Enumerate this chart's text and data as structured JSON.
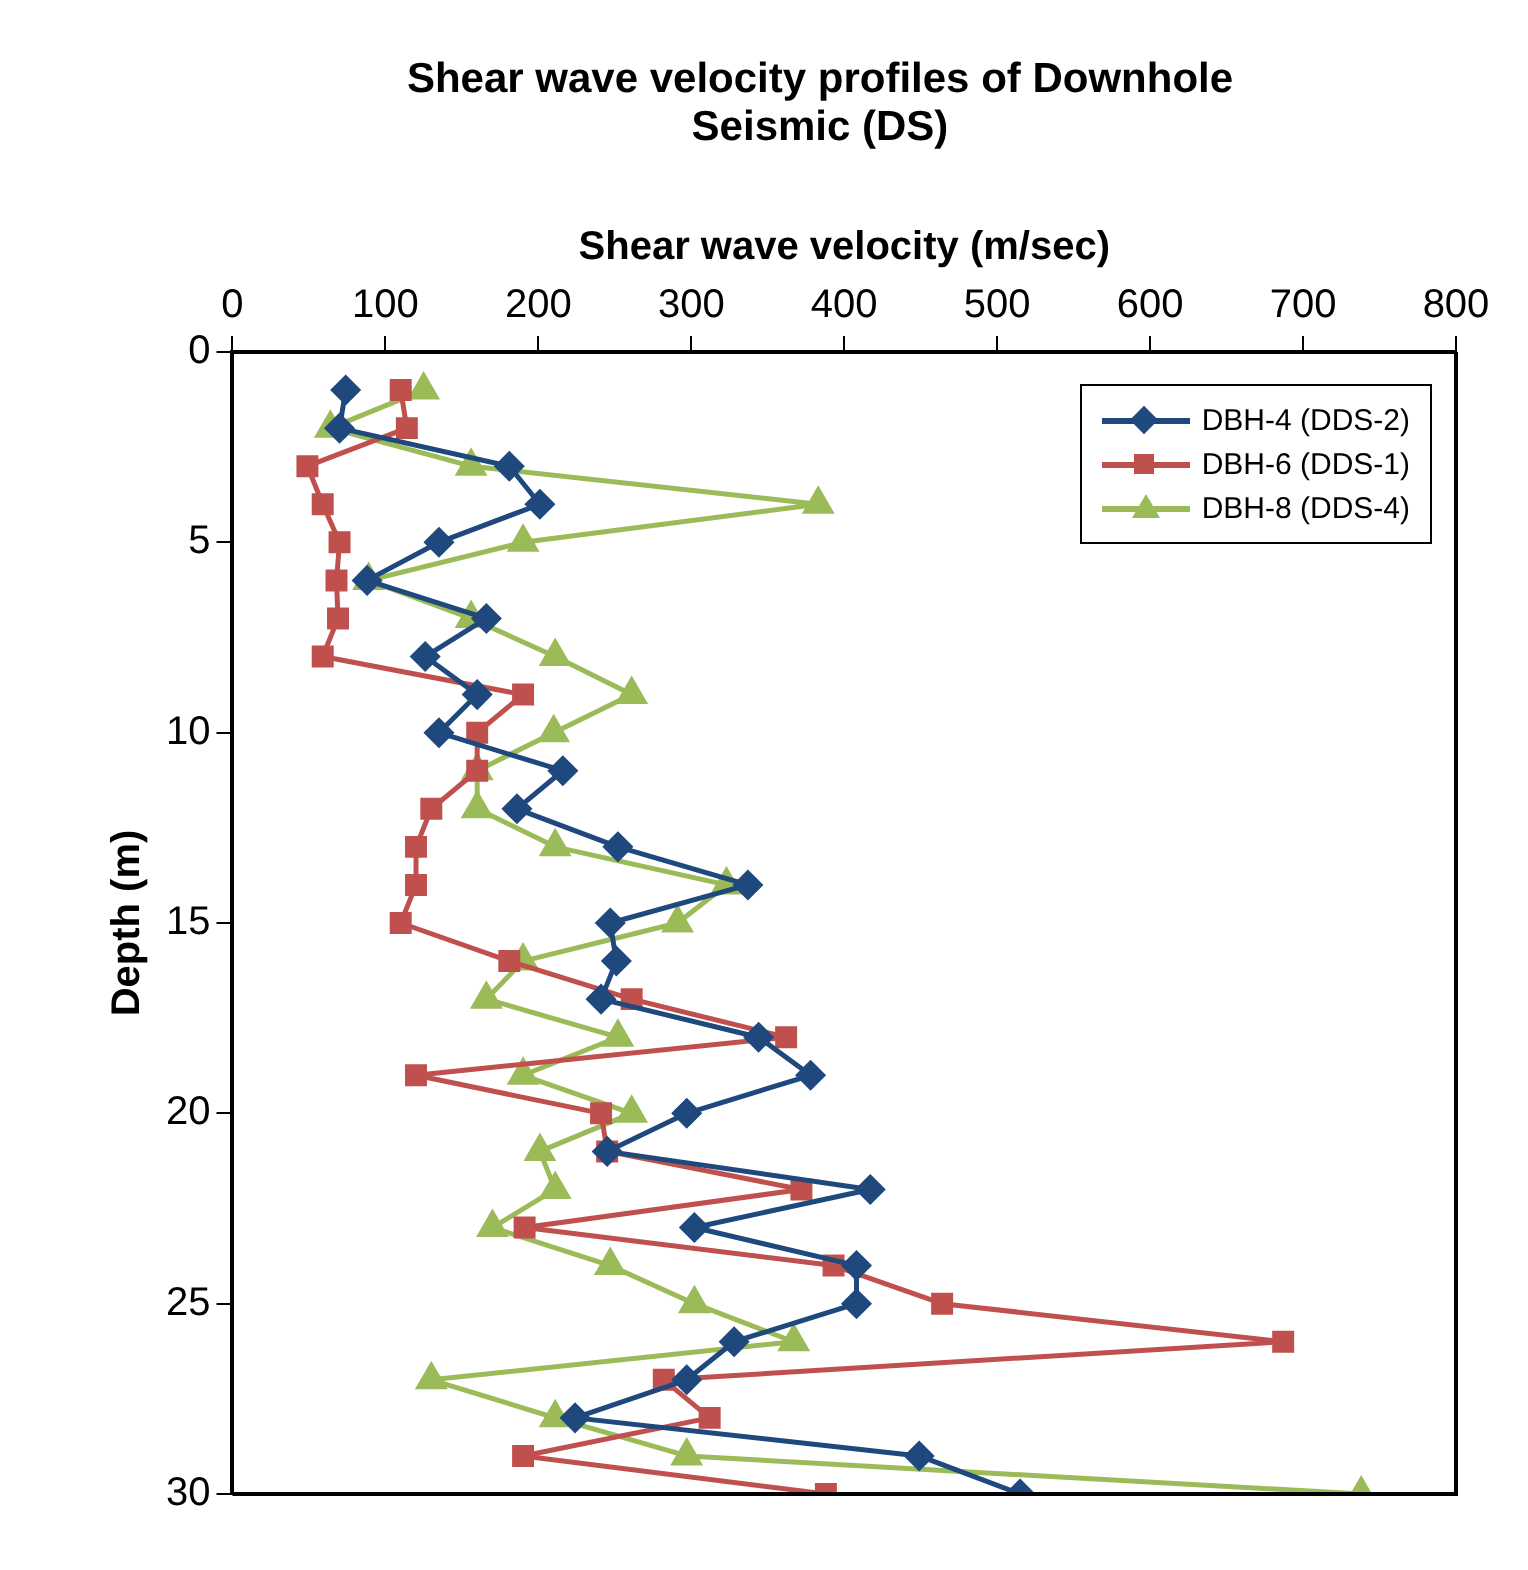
{
  "chart_data": {
    "type": "line",
    "title": "Shear wave velocity profiles of Downhole Seismic (DS)",
    "xlabel": "Shear wave velocity (m/sec)",
    "ylabel": "Depth (m)",
    "xlim": [
      0,
      800
    ],
    "xticks": [
      0,
      100,
      200,
      300,
      400,
      500,
      600,
      700,
      800
    ],
    "ylim": [
      30,
      0
    ],
    "yticks": [
      0,
      5,
      10,
      15,
      20,
      25,
      30
    ],
    "grid": false,
    "legend": "top right",
    "line_style": "solid",
    "series": [
      {
        "name": "DBH-4 (DDS-2)",
        "color": "#1f497d",
        "marker": "diamond",
        "x": [
          74,
          70,
          181,
          201,
          135,
          88,
          166,
          126,
          160,
          135,
          216,
          186,
          252,
          337,
          247,
          251,
          241,
          344,
          378,
          297,
          245,
          417,
          302,
          408,
          408,
          328,
          297,
          224,
          449,
          515
        ],
        "values": [
          1,
          2,
          3,
          4,
          5,
          6,
          7,
          8,
          9,
          10,
          11,
          12,
          13,
          14,
          15,
          16,
          17,
          18,
          19,
          20,
          21,
          22,
          23,
          24,
          25,
          26,
          27,
          28,
          29,
          30
        ]
      },
      {
        "name": "DBH-6 (DDS-1)",
        "color": "#c0504d",
        "marker": "square",
        "x": [
          110,
          114,
          49,
          59,
          70,
          68,
          69,
          59,
          190,
          160,
          160,
          130,
          120,
          120,
          110,
          181,
          261,
          362,
          120,
          241,
          245,
          372,
          191,
          393,
          464,
          687,
          282,
          312,
          190,
          388
        ],
        "values": [
          1,
          2,
          3,
          4,
          5,
          6,
          7,
          8,
          9,
          10,
          11,
          12,
          13,
          14,
          15,
          16,
          17,
          18,
          19,
          20,
          21,
          22,
          23,
          24,
          25,
          26,
          27,
          28,
          29,
          30
        ]
      },
      {
        "name": "DBH-8 (DDS-4)",
        "color": "#9bbb59",
        "marker": "triangle",
        "x": [
          125,
          64,
          156,
          383,
          190,
          89,
          156,
          211,
          261,
          210,
          160,
          160,
          211,
          323,
          291,
          190,
          166,
          252,
          190,
          261,
          201,
          211,
          170,
          247,
          302,
          367,
          130,
          211,
          297,
          738
        ],
        "values": [
          1,
          2,
          3,
          4,
          5,
          6,
          7,
          8,
          9,
          10,
          11,
          12,
          13,
          14,
          15,
          16,
          17,
          18,
          19,
          20,
          21,
          22,
          23,
          24,
          25,
          26,
          27,
          28,
          29,
          30
        ]
      }
    ]
  }
}
